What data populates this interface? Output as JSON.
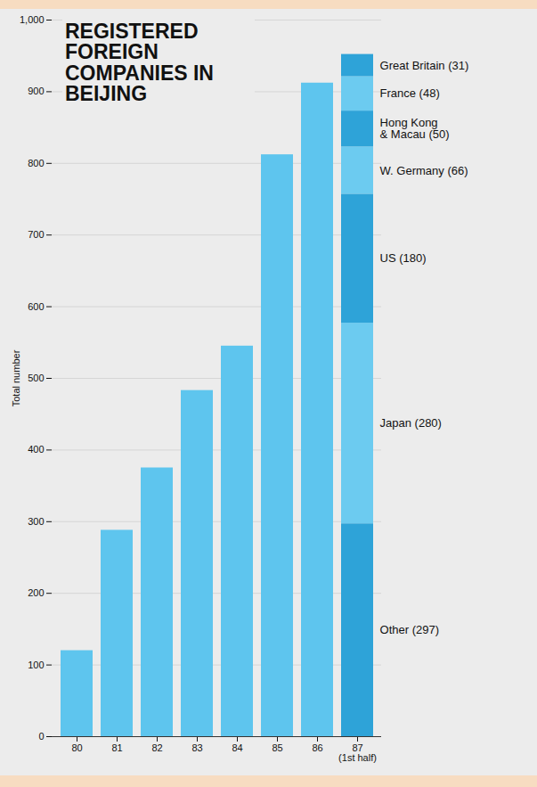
{
  "chart_data": {
    "type": "bar",
    "stacked": true,
    "title": "REGISTERED FOREIGN COMPANIES IN BEIJING",
    "y_label": "Total number",
    "categories": [
      "80",
      "81",
      "82",
      "83",
      "84",
      "85",
      "86",
      "87\n(1st half)"
    ],
    "series": [
      {
        "name": null,
        "color": "#5ec5ee",
        "values": [
          120,
          288,
          375,
          483,
          545,
          812,
          912,
          null
        ]
      },
      {
        "name": "Other (297)",
        "color": "#2ea3d8",
        "values": [
          null,
          null,
          null,
          null,
          null,
          null,
          null,
          297
        ]
      },
      {
        "name": "Japan (280)",
        "color": "#6ccbf0",
        "values": [
          null,
          null,
          null,
          null,
          null,
          null,
          null,
          280
        ]
      },
      {
        "name": "US (180)",
        "color": "#2ea3d8",
        "values": [
          null,
          null,
          null,
          null,
          null,
          null,
          null,
          180
        ]
      },
      {
        "name": "W. Germany (66)",
        "color": "#6ccbf0",
        "values": [
          null,
          null,
          null,
          null,
          null,
          null,
          null,
          66
        ]
      },
      {
        "name": "Hong Kong & Macau (50)",
        "color": "#2ea3d8",
        "values": [
          null,
          null,
          null,
          null,
          null,
          null,
          null,
          50
        ]
      },
      {
        "name": "France (48)",
        "color": "#6ccbf0",
        "values": [
          null,
          null,
          null,
          null,
          null,
          null,
          null,
          48
        ]
      },
      {
        "name": "Great Britain (31)",
        "color": "#2ea3d8",
        "values": [
          null,
          null,
          null,
          null,
          null,
          null,
          null,
          31
        ]
      }
    ],
    "ylim": [
      0,
      1000
    ],
    "yticks": [
      0,
      100,
      200,
      300,
      400,
      500,
      600,
      700,
      800,
      900,
      1000
    ],
    "grid": true
  }
}
